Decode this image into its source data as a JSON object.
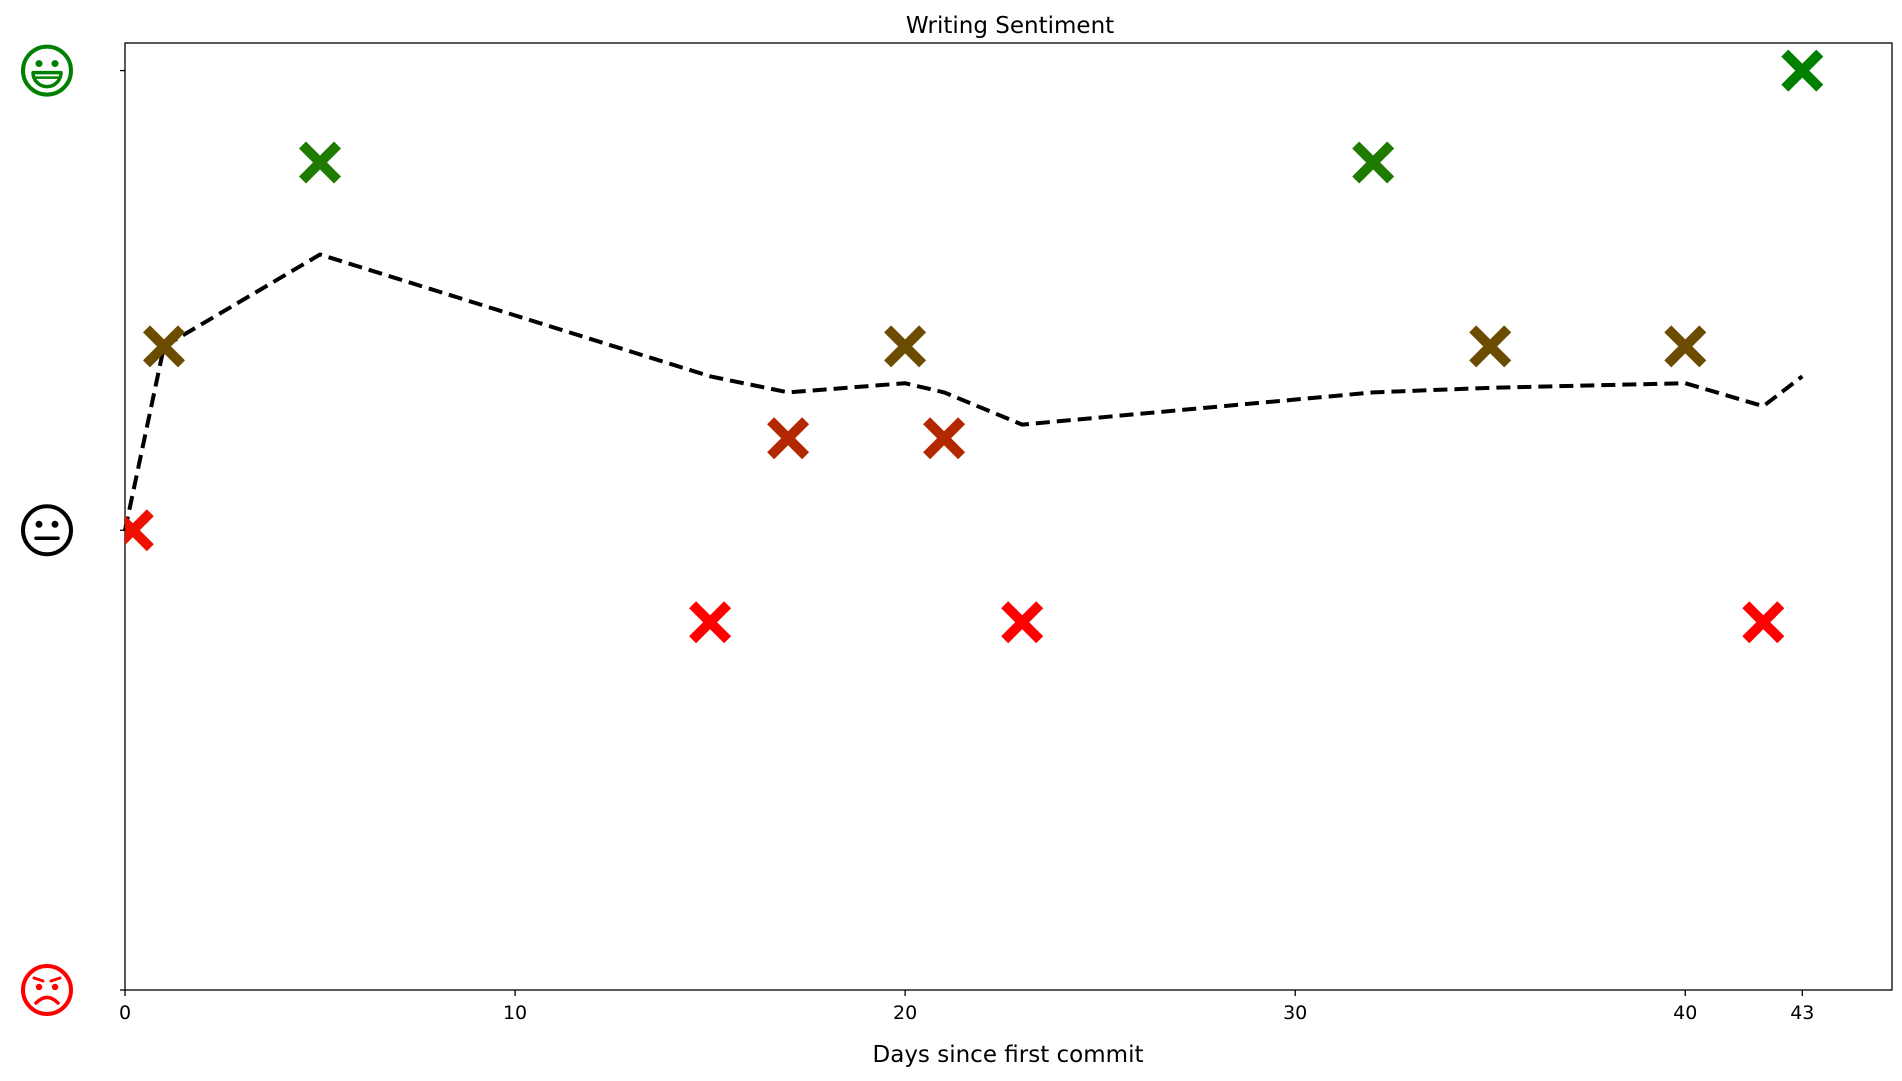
{
  "chart_data": {
    "type": "scatter",
    "title": "Writing Sentiment",
    "xlabel": "Days since first commit",
    "ylabel": "",
    "xlim": [
      0,
      45.3
    ],
    "ylim": [
      -1,
      1.06
    ],
    "x_ticks": [
      0,
      10,
      20,
      30,
      40,
      43
    ],
    "x_tick_labels": [
      "0",
      "10",
      "20",
      "30",
      "40",
      "43"
    ],
    "y_ticks": [
      {
        "value": 1,
        "icon": "happy-face-icon",
        "color": "#008000"
      },
      {
        "value": 0,
        "icon": "neutral-face-icon",
        "color": "#000000"
      },
      {
        "value": -1,
        "icon": "sad-face-icon",
        "color": "#ff0000"
      }
    ],
    "grid": false,
    "legend": "none",
    "scatter_series": {
      "marker": "X",
      "points": [
        {
          "x": 0.2,
          "y": 0.0,
          "color": "#ee1100"
        },
        {
          "x": 1,
          "y": 0.4,
          "color": "#6b4c00"
        },
        {
          "x": 5,
          "y": 0.8,
          "color": "#1f7a00"
        },
        {
          "x": 15,
          "y": -0.2,
          "color": "#ff0000"
        },
        {
          "x": 17,
          "y": 0.2,
          "color": "#b32800"
        },
        {
          "x": 20,
          "y": 0.4,
          "color": "#6b4c00"
        },
        {
          "x": 21,
          "y": 0.2,
          "color": "#b32800"
        },
        {
          "x": 23,
          "y": -0.2,
          "color": "#ff0000"
        },
        {
          "x": 32,
          "y": 0.8,
          "color": "#1f7a00"
        },
        {
          "x": 35,
          "y": 0.4,
          "color": "#6b4c00"
        },
        {
          "x": 40,
          "y": 0.4,
          "color": "#6b4c00"
        },
        {
          "x": 42,
          "y": -0.2,
          "color": "#ff0000"
        },
        {
          "x": 43,
          "y": 1.0,
          "color": "#008000"
        }
      ]
    },
    "trend_series": {
      "style": "dashed",
      "color": "#000000",
      "points": [
        {
          "x": 0,
          "y": 0.0
        },
        {
          "x": 1,
          "y": 0.4
        },
        {
          "x": 5,
          "y": 0.6
        },
        {
          "x": 15,
          "y": 0.335
        },
        {
          "x": 17,
          "y": 0.3
        },
        {
          "x": 20,
          "y": 0.32
        },
        {
          "x": 21,
          "y": 0.3
        },
        {
          "x": 23,
          "y": 0.23
        },
        {
          "x": 32,
          "y": 0.3
        },
        {
          "x": 35,
          "y": 0.31
        },
        {
          "x": 40,
          "y": 0.32
        },
        {
          "x": 42,
          "y": 0.27
        },
        {
          "x": 43,
          "y": 0.335
        }
      ]
    }
  }
}
